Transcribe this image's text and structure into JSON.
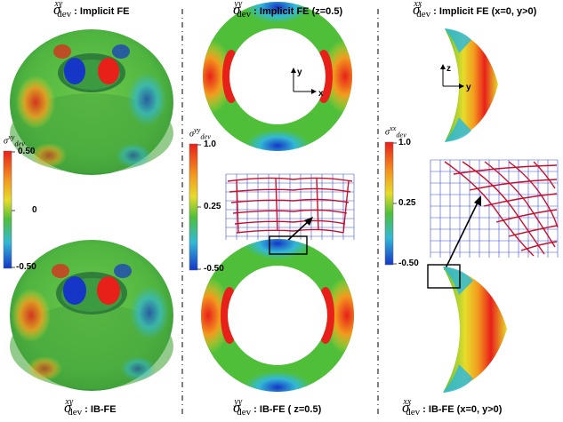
{
  "captions": {
    "col1_top": {
      "sym": "σ",
      "sup": "xy",
      "sub": "dev",
      "text": ": Implicit FE"
    },
    "col1_bottom": {
      "sym": "σ",
      "sup": "xy",
      "sub": "dev",
      "text": ": IB-FE"
    },
    "col2_top": {
      "sym": "σ",
      "sup": "yy",
      "sub": "dev",
      "text": ": Implicit FE (z=0.5)"
    },
    "col2_bottom": {
      "sym": "σ",
      "sup": "yy",
      "sub": "dev",
      "text": ": IB-FE ( z=0.5)"
    },
    "col3_top": {
      "sym": "σ",
      "sup": "xx",
      "sub": "dev",
      "text": ": Implicit FE  (x=0, y>0)"
    },
    "col3_bottom": {
      "sym": "σ",
      "sup": "xx",
      "sub": "dev",
      "text": ": IB-FE (x=0, y>0)"
    }
  },
  "colorbars": {
    "xy": {
      "title": "σ",
      "title_sup": "xy",
      "title_sub": "dev",
      "max": "0.50",
      "mid": "0",
      "min": "-0.50"
    },
    "yy": {
      "title": "σ",
      "title_sup": "yy",
      "title_sub": "dev",
      "max": "1.0",
      "mid": "0.25",
      "min": "-0.50"
    },
    "xx": {
      "title": "σ",
      "title_sup": "xx",
      "title_sub": "dev",
      "max": "1.0",
      "mid": "0.25",
      "min": "-0.50"
    }
  },
  "axes": {
    "ring_axes": {
      "vertical": "y",
      "horizontal": "x"
    },
    "slice_axes": {
      "vertical": "z",
      "horizontal": "y"
    }
  },
  "colors": {
    "red": "#e8201a",
    "orange": "#f39a1e",
    "yellow": "#e6dc2a",
    "green": "#4fbf3a",
    "cyan": "#33b9d6",
    "blue": "#1636c8",
    "mesh_red": "#c8102e",
    "mesh_blue": "#3a4fd8"
  }
}
